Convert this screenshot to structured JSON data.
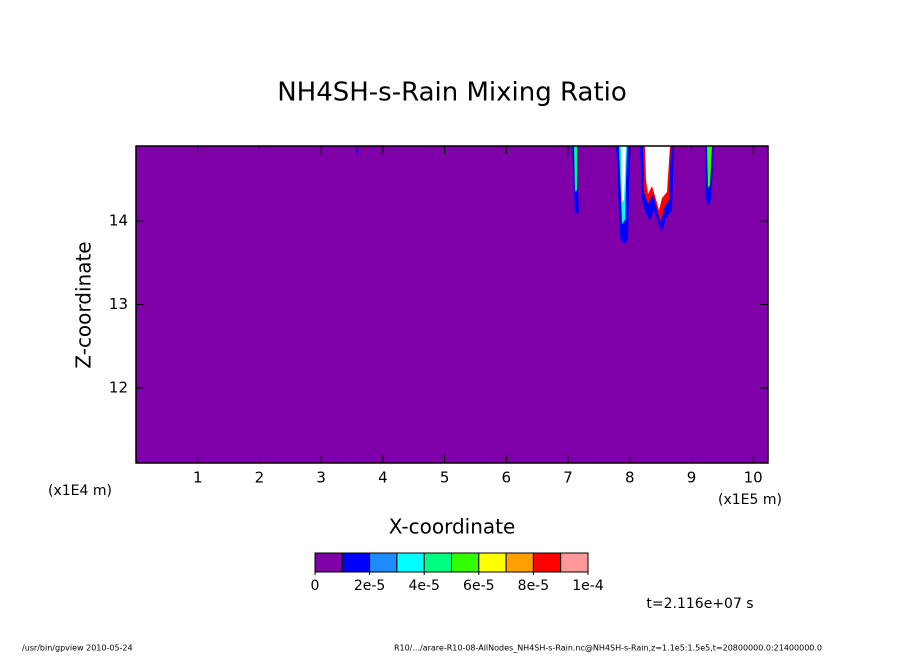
{
  "chart_data": {
    "type": "contour",
    "title": "NH4SH-s-Rain Mixing Ratio",
    "x_label": "X-coordinate",
    "y_label": "Z-coordinate",
    "x_unit_left": "(x1E4 m)",
    "x_unit_right": "(x1E5 m)",
    "time_label": "t=2.116e+07 s",
    "footer_left": "/usr/bin/gpview  2010-05-24",
    "footer_right": "R10/.../arare-R10-08-AllNodes_NH4SH-s-Rain.nc@NH4SH-s-Rain,z=1.1e5:1.5e5,t=20800000.0:21400000.0",
    "xlim": [
      0,
      10.24
    ],
    "xticks": [
      1,
      2,
      3,
      4,
      5,
      6,
      7,
      8,
      9,
      10
    ],
    "ylim": [
      11.1,
      14.9
    ],
    "yticks": [
      12,
      13,
      14
    ],
    "levels": [
      0,
      1e-05,
      2e-05,
      3e-05,
      4e-05,
      5e-05,
      6e-05,
      7e-05,
      8e-05,
      9e-05,
      0.0001
    ],
    "level_colors": [
      "#7f00a8",
      "#0000ff",
      "#1e8cff",
      "#00ffff",
      "#00ff80",
      "#33ff00",
      "#ffff00",
      "#ffa000",
      "#ff0000",
      "#ff9999"
    ],
    "colorbar_ticks": [
      0,
      {
        "value": 2e-05,
        "label": "2e-5"
      },
      {
        "value": 4e-05,
        "label": "4e-5"
      },
      {
        "value": 6e-05,
        "label": "6e-5"
      },
      {
        "value": 8e-05,
        "label": "8e-5"
      },
      {
        "value": 0.0001,
        "label": "1e-4"
      }
    ]
  }
}
